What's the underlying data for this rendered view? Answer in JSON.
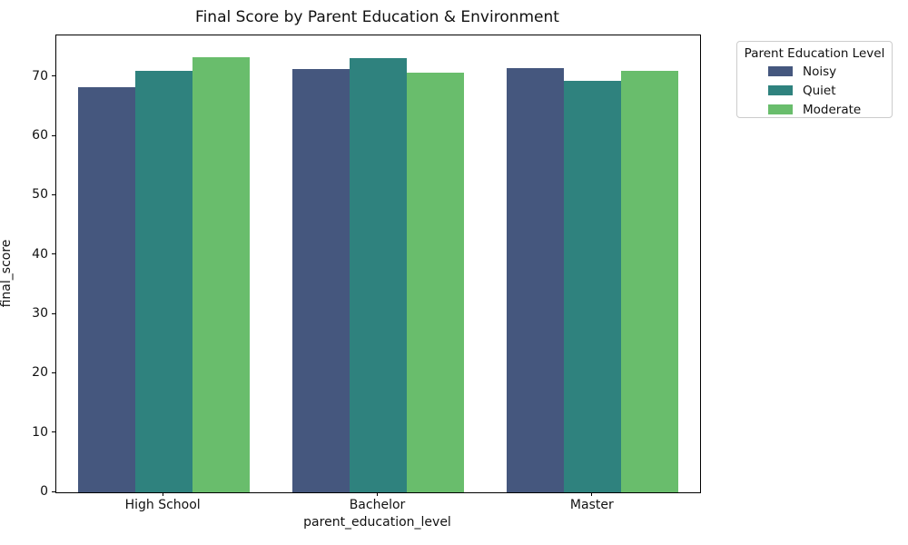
{
  "chart_data": {
    "type": "bar",
    "title": "Final Score by Parent Education & Environment",
    "xlabel": "parent_education_level",
    "ylabel": "final_score",
    "categories": [
      "High School",
      "Bachelor",
      "Master"
    ],
    "series": [
      {
        "name": "Noisy",
        "color": "#45577E",
        "values": [
          68.3,
          71.3,
          71.5
        ]
      },
      {
        "name": "Quiet",
        "color": "#2F827E",
        "values": [
          71.0,
          73.2,
          69.3
        ]
      },
      {
        "name": "Moderate",
        "color": "#69BD6C",
        "values": [
          73.3,
          70.7,
          71.0
        ]
      }
    ],
    "ylim": [
      0,
      77
    ],
    "yticks": [
      0,
      10,
      20,
      30,
      40,
      50,
      60,
      70
    ],
    "grid": false,
    "legend": {
      "title": "Parent Education Level",
      "position": "upper-right-outside"
    }
  }
}
